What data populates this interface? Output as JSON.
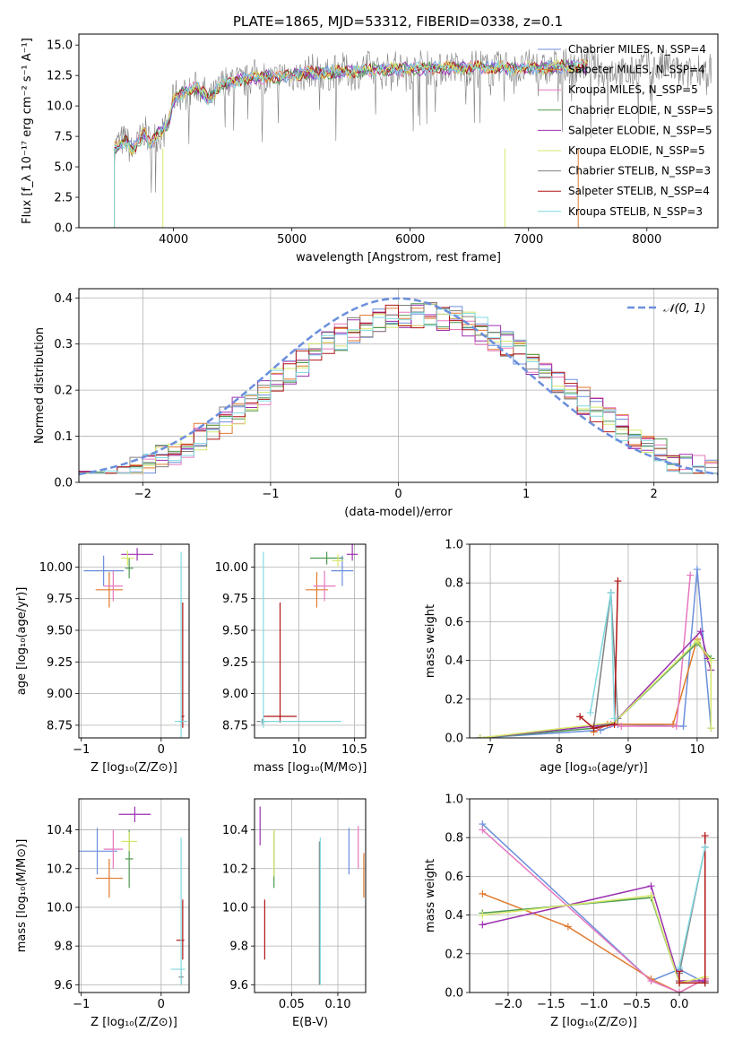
{
  "figure": {
    "title": "PLATE=1865, MJD=53312, FIBERID=0338, z=0.1"
  },
  "colors": {
    "chabrier_miles": "#6b8fdc",
    "salpeter_miles": "#e07a2d",
    "kroupa_miles": "#e678c0",
    "chabrier_elodie": "#4e9a4e",
    "salpeter_elodie": "#9b30b0",
    "kroupa_elodie": "#d6e86a",
    "chabrier_stelib": "#808080",
    "salpeter_stelib": "#b01515",
    "kroupa_stelib": "#80d8e0",
    "gauss": "#6b8fdc",
    "grid": "#b0b0b0"
  },
  "chart_data": [
    {
      "id": "spectrum",
      "type": "line",
      "xlabel": "wavelength [Angstrom, rest frame]",
      "ylabel": "Flux [f_λ 10⁻¹⁷ erg cm⁻² s⁻¹ A⁻¹]",
      "xlim": [
        3200,
        8600
      ],
      "ylim": [
        0,
        15.9
      ],
      "xticks": [
        4000,
        5000,
        6000,
        7000,
        8000
      ],
      "yticks": [
        0.0,
        2.5,
        5.0,
        7.5,
        10.0,
        12.5,
        15.0
      ],
      "grid": false,
      "legend_position": "right",
      "observed": {
        "x": [
          3500,
          3550,
          3600,
          3650,
          3700,
          3750,
          3800,
          3850,
          3900,
          3950,
          4000,
          4100,
          4200,
          4300,
          4400,
          4500,
          4600,
          4700,
          4800,
          4900,
          5000,
          5200,
          5400,
          5600,
          5800,
          6000,
          6200,
          6400,
          6600,
          6800,
          7000,
          7200,
          7400,
          7500
        ],
        "y": [
          6.5,
          6.8,
          7.2,
          6.4,
          7.0,
          7.8,
          6.8,
          7.6,
          8.0,
          8.3,
          10.5,
          11.2,
          11.5,
          10.5,
          11.8,
          12.0,
          12.2,
          12.3,
          12.4,
          12.3,
          12.6,
          12.7,
          12.8,
          12.9,
          13.0,
          13.0,
          13.1,
          13.1,
          13.2,
          13.1,
          13.1,
          13.2,
          13.3,
          13.2
        ]
      },
      "series": [
        {
          "name": "Chabrier MILES, N_SSP=4",
          "key": "chabrier_miles"
        },
        {
          "name": "Salpeter MILES, N_SSP=4",
          "key": "salpeter_miles"
        },
        {
          "name": "Kroupa MILES, N_SSP=5",
          "key": "kroupa_miles"
        },
        {
          "name": "Chabrier ELODIE, N_SSP=5",
          "key": "chabrier_elodie"
        },
        {
          "name": "Salpeter ELODIE, N_SSP=5",
          "key": "salpeter_elodie"
        },
        {
          "name": "Kroupa ELODIE, N_SSP=5",
          "key": "kroupa_elodie"
        },
        {
          "name": "Chabrier STELIB, N_SSP=3",
          "key": "chabrier_stelib"
        },
        {
          "name": "Salpeter STELIB, N_SSP=4",
          "key": "salpeter_stelib"
        },
        {
          "name": "Kroupa STELIB, N_SSP=3",
          "key": "kroupa_stelib"
        }
      ]
    },
    {
      "id": "residuals",
      "type": "histogram",
      "xlabel": "(data-model)/error",
      "ylabel": "Normed distribution",
      "xlim": [
        -2.5,
        2.5
      ],
      "ylim": [
        0,
        0.42
      ],
      "xticks": [
        -2,
        -1,
        0,
        1,
        2
      ],
      "yticks": [
        0.0,
        0.1,
        0.2,
        0.3,
        0.4
      ],
      "grid": true,
      "legend_position": "top-right",
      "gauss_label": "𝒩(0, 1)",
      "bin_width": 0.1
    },
    {
      "id": "age_vs_Z",
      "type": "errorbar",
      "xlabel": "Z [log₁₀(Z/Z⊙)]",
      "ylabel": "age [log₁₀(age/yr)]",
      "xlim": [
        -1.03,
        0.35
      ],
      "ylim": [
        8.65,
        10.18
      ],
      "xticks": [
        -1,
        0
      ],
      "yticks": [
        8.75,
        9.0,
        9.25,
        9.5,
        9.75,
        10.0
      ],
      "ytick_labels": [
        "8.75",
        "9.00",
        "9.25",
        "9.50",
        "9.75",
        "10.00"
      ],
      "grid": true,
      "points": [
        {
          "key": "chabrier_miles",
          "x": -0.72,
          "xerr": [
            0.25,
            0.25
          ],
          "y": 9.97,
          "yerr": [
            0.12,
            0.12
          ]
        },
        {
          "key": "salpeter_miles",
          "x": -0.65,
          "xerr": [
            0.17,
            0.17
          ],
          "y": 9.82,
          "yerr": [
            0.14,
            0.14
          ]
        },
        {
          "key": "kroupa_miles",
          "x": -0.6,
          "xerr": [
            0.12,
            0.12
          ],
          "y": 9.85,
          "yerr": [
            0.12,
            0.12
          ]
        },
        {
          "key": "chabrier_elodie",
          "x": -0.4,
          "xerr": [
            0.05,
            0.05
          ],
          "y": 9.99,
          "yerr": [
            0.08,
            0.08
          ]
        },
        {
          "key": "salpeter_elodie",
          "x": -0.3,
          "xerr": [
            0.2,
            0.2
          ],
          "y": 10.1,
          "yerr": [
            0.05,
            0.05
          ]
        },
        {
          "key": "kroupa_elodie",
          "x": -0.42,
          "xerr": [
            0.08,
            0.08
          ],
          "y": 10.07,
          "yerr": [
            0.06,
            0.06
          ]
        },
        {
          "key": "chabrier_stelib",
          "x": 0.25,
          "xerr": [
            0.02,
            0.02
          ],
          "y": 8.78,
          "yerr": [
            0.02,
            0.02
          ]
        },
        {
          "key": "salpeter_stelib",
          "x": 0.27,
          "xerr": [
            0.02,
            0.02
          ],
          "y": 8.82,
          "yerr": [
            0.09,
            0.9
          ]
        },
        {
          "key": "kroupa_stelib",
          "x": 0.25,
          "xerr": [
            0.08,
            0.08
          ],
          "y": 8.78,
          "yerr": [
            0.15,
            1.34
          ]
        }
      ]
    },
    {
      "id": "age_vs_mass",
      "type": "errorbar",
      "xlabel": "mass [log₁₀(M/M⊙)]",
      "ylabel": "",
      "xlim": [
        9.6,
        10.6
      ],
      "ylim": [
        8.65,
        10.18
      ],
      "xticks": [
        10.0,
        10.5
      ],
      "yticks": [
        8.75,
        9.0,
        9.25,
        9.5,
        9.75,
        10.0
      ],
      "ytick_labels": [
        "8.75",
        "9.00",
        "9.25",
        "9.50",
        "9.75",
        "10.00"
      ],
      "grid": true,
      "points": [
        {
          "key": "chabrier_miles",
          "x": 10.39,
          "xerr": [
            0.1,
            0.1
          ],
          "y": 9.97,
          "yerr": [
            0.12,
            0.12
          ]
        },
        {
          "key": "salpeter_miles",
          "x": 10.16,
          "xerr": [
            0.1,
            0.1
          ],
          "y": 9.82,
          "yerr": [
            0.14,
            0.14
          ]
        },
        {
          "key": "kroupa_miles",
          "x": 10.23,
          "xerr": [
            0.1,
            0.1
          ],
          "y": 9.85,
          "yerr": [
            0.12,
            0.12
          ]
        },
        {
          "key": "chabrier_elodie",
          "x": 10.25,
          "xerr": [
            0.15,
            0.15
          ],
          "y": 10.07,
          "yerr": [
            0.05,
            0.05
          ]
        },
        {
          "key": "salpeter_elodie",
          "x": 10.48,
          "xerr": [
            0.05,
            0.05
          ],
          "y": 10.1,
          "yerr": [
            0.05,
            0.1
          ]
        },
        {
          "key": "kroupa_elodie",
          "x": 10.35,
          "xerr": [
            0.05,
            0.05
          ],
          "y": 10.05,
          "yerr": [
            0.05,
            0.05
          ]
        },
        {
          "key": "chabrier_stelib",
          "x": 9.67,
          "xerr": [
            0.05,
            0.05
          ],
          "y": 8.78,
          "yerr": [
            0.02,
            0.02
          ]
        },
        {
          "key": "salpeter_stelib",
          "x": 9.83,
          "xerr": [
            0.15,
            0.15
          ],
          "y": 8.82,
          "yerr": [
            0.05,
            0.9
          ]
        },
        {
          "key": "kroupa_stelib",
          "x": 9.68,
          "xerr": [
            0.03,
            0.7
          ],
          "y": 8.78,
          "yerr": [
            0.05,
            1.34
          ]
        }
      ]
    },
    {
      "id": "mass_weight_vs_age",
      "type": "line",
      "xlabel": "age [log₁₀(age/yr)]",
      "ylabel": "mass weight",
      "xlim": [
        6.7,
        10.3
      ],
      "ylim": [
        0,
        1.0
      ],
      "xticks": [
        7,
        8,
        9,
        10
      ],
      "yticks": [
        0.0,
        0.2,
        0.4,
        0.6,
        0.8,
        1.0
      ],
      "grid": true,
      "series": [
        {
          "key": "chabrier_miles",
          "x": [
            6.85,
            8.6,
            8.85,
            9.8,
            10.0,
            10.2
          ],
          "y": [
            0.0,
            0.04,
            0.07,
            0.06,
            0.87,
            0.05
          ]
        },
        {
          "key": "salpeter_miles",
          "x": [
            8.5,
            8.7,
            9.65,
            10.0,
            10.15
          ],
          "y": [
            0.03,
            0.07,
            0.07,
            0.51,
            0.41
          ]
        },
        {
          "key": "kroupa_miles",
          "x": [
            8.55,
            8.75,
            8.9,
            9.7,
            9.9
          ],
          "y": [
            0.05,
            0.07,
            0.06,
            0.06,
            0.84
          ]
        },
        {
          "key": "chabrier_elodie",
          "x": [
            6.85,
            8.5,
            8.8,
            10.0,
            10.2
          ],
          "y": [
            0.0,
            0.05,
            0.08,
            0.49,
            0.41
          ]
        },
        {
          "key": "salpeter_elodie",
          "x": [
            6.85,
            8.5,
            8.8,
            10.05,
            10.15,
            10.2
          ],
          "y": [
            0.0,
            0.06,
            0.08,
            0.55,
            0.41,
            0.35
          ]
        },
        {
          "key": "kroupa_elodie",
          "x": [
            6.85,
            8.8,
            10.0,
            10.2,
            10.2
          ],
          "y": [
            0.0,
            0.08,
            0.5,
            0.4,
            0.05
          ]
        },
        {
          "key": "chabrier_stelib",
          "x": [
            8.5,
            8.75,
            8.85
          ],
          "y": [
            0.05,
            0.75,
            0.1
          ]
        },
        {
          "key": "salpeter_stelib",
          "x": [
            8.3,
            8.5,
            8.8,
            8.85
          ],
          "y": [
            0.11,
            0.05,
            0.07,
            0.81
          ]
        },
        {
          "key": "kroupa_stelib",
          "x": [
            8.45,
            8.75,
            8.8
          ],
          "y": [
            0.13,
            0.75,
            0.1
          ]
        }
      ]
    },
    {
      "id": "mass_vs_Z",
      "type": "errorbar",
      "xlabel": "Z [log₁₀(Z/Z⊙)]",
      "ylabel": "mass [log₁₀(M/M⊙)]",
      "xlim": [
        -1.03,
        0.35
      ],
      "ylim": [
        9.56,
        10.56
      ],
      "xticks": [
        -1,
        0
      ],
      "yticks": [
        9.6,
        9.8,
        10.0,
        10.2,
        10.4
      ],
      "grid": true,
      "points": [
        {
          "key": "chabrier_miles",
          "x": -0.8,
          "xerr": [
            0.25,
            0.25
          ],
          "y": 10.29,
          "yerr": [
            0.12,
            0.12
          ]
        },
        {
          "key": "salpeter_miles",
          "x": -0.65,
          "xerr": [
            0.17,
            0.17
          ],
          "y": 10.15,
          "yerr": [
            0.1,
            0.1
          ]
        },
        {
          "key": "kroupa_miles",
          "x": -0.6,
          "xerr": [
            0.12,
            0.12
          ],
          "y": 10.3,
          "yerr": [
            0.1,
            0.1
          ]
        },
        {
          "key": "chabrier_elodie",
          "x": -0.4,
          "xerr": [
            0.05,
            0.05
          ],
          "y": 10.25,
          "yerr": [
            0.15,
            0.15
          ]
        },
        {
          "key": "salpeter_elodie",
          "x": -0.33,
          "xerr": [
            0.2,
            0.2
          ],
          "y": 10.48,
          "yerr": [
            0.04,
            0.04
          ]
        },
        {
          "key": "kroupa_elodie",
          "x": -0.4,
          "xerr": [
            0.1,
            0.1
          ],
          "y": 10.34,
          "yerr": [
            0.05,
            0.05
          ]
        },
        {
          "key": "chabrier_stelib",
          "x": 0.25,
          "xerr": [
            0.03,
            0.03
          ],
          "y": 9.64,
          "yerr": [
            0.04,
            0.04
          ]
        },
        {
          "key": "salpeter_stelib",
          "x": 0.27,
          "xerr": [
            0.08,
            0.02
          ],
          "y": 9.83,
          "yerr": [
            0.1,
            0.21
          ]
        },
        {
          "key": "kroupa_stelib",
          "x": 0.25,
          "xerr": [
            0.13,
            0.05
          ],
          "y": 9.68,
          "yerr": [
            0.08,
            0.68
          ]
        }
      ]
    },
    {
      "id": "mass_vs_ebv",
      "type": "errorbar",
      "xlabel": "E(B-V)",
      "ylabel": "",
      "xlim": [
        0.01,
        0.13
      ],
      "ylim": [
        9.56,
        10.56
      ],
      "xticks": [
        0.05,
        0.1
      ],
      "xtick_labels": [
        "0.05",
        "0.10"
      ],
      "yticks": [
        9.6,
        9.8,
        10.0,
        10.2,
        10.4
      ],
      "grid": true,
      "points": [
        {
          "key": "chabrier_miles",
          "x": 0.112,
          "y": 10.29,
          "yerr": [
            0.12,
            0.12
          ]
        },
        {
          "key": "salpeter_miles",
          "x": 0.128,
          "y": 10.15,
          "yerr": [
            0.1,
            0.13
          ]
        },
        {
          "key": "kroupa_miles",
          "x": 0.122,
          "y": 10.3,
          "yerr": [
            0.1,
            0.12
          ]
        },
        {
          "key": "chabrier_elodie",
          "x": 0.031,
          "y": 10.25,
          "yerr": [
            0.15,
            0.15
          ]
        },
        {
          "key": "salpeter_elodie",
          "x": 0.016,
          "y": 10.42,
          "yerr": [
            0.1,
            0.1
          ]
        },
        {
          "key": "kroupa_elodie",
          "x": 0.031,
          "y": 10.28,
          "yerr": [
            0.12,
            0.12
          ]
        },
        {
          "key": "chabrier_stelib",
          "x": 0.08,
          "y": 9.64,
          "yerr": [
            0.04,
            0.7
          ]
        },
        {
          "key": "salpeter_stelib",
          "x": 0.021,
          "y": 9.88,
          "yerr": [
            0.15,
            0.16
          ]
        },
        {
          "key": "kroupa_stelib",
          "x": 0.081,
          "y": 9.98,
          "yerr": [
            0.38,
            0.38
          ]
        }
      ]
    },
    {
      "id": "mass_weight_vs_Z",
      "type": "line",
      "xlabel": "Z [log₁₀(Z/Z⊙)]",
      "ylabel": "mass weight",
      "xlim": [
        -2.45,
        0.45
      ],
      "ylim": [
        0,
        1.0
      ],
      "xticks": [
        -2.0,
        -1.5,
        -1.0,
        -0.5,
        0.0
      ],
      "xtick_labels": [
        "−2.0",
        "−1.5",
        "−1.0",
        "−0.5",
        "0.0"
      ],
      "yticks": [
        0.0,
        0.2,
        0.4,
        0.6,
        0.8,
        1.0
      ],
      "grid": true,
      "series": [
        {
          "key": "chabrier_miles",
          "x": [
            -2.3,
            -0.33,
            0.0,
            0.3
          ],
          "y": [
            0.87,
            0.06,
            0.12,
            0.05
          ]
        },
        {
          "key": "salpeter_miles",
          "x": [
            -2.3,
            -1.3,
            -0.33,
            0.0,
            0.3
          ],
          "y": [
            0.51,
            0.34,
            0.07,
            0.0,
            0.07
          ]
        },
        {
          "key": "kroupa_miles",
          "x": [
            -2.3,
            -0.33,
            0.0,
            0.3
          ],
          "y": [
            0.84,
            0.06,
            0.0,
            0.07
          ]
        },
        {
          "key": "chabrier_elodie",
          "x": [
            -2.3,
            -0.33,
            0.0,
            0.3
          ],
          "y": [
            0.41,
            0.49,
            0.05,
            0.05
          ]
        },
        {
          "key": "salpeter_elodie",
          "x": [
            -2.3,
            -0.33,
            0.0,
            0.3
          ],
          "y": [
            0.35,
            0.55,
            0.06,
            0.06
          ]
        },
        {
          "key": "kroupa_elodie",
          "x": [
            -2.3,
            -0.33,
            0.0,
            0.3
          ],
          "y": [
            0.4,
            0.5,
            0.05,
            0.08
          ]
        },
        {
          "key": "chabrier_stelib",
          "x": [
            0.0,
            0.3
          ],
          "y": [
            0.1,
            0.75
          ]
        },
        {
          "key": "salpeter_stelib",
          "x": [
            0.0,
            0.0,
            0.3,
            0.3
          ],
          "y": [
            0.11,
            0.05,
            0.05,
            0.81
          ]
        },
        {
          "key": "kroupa_stelib",
          "x": [
            0.0,
            0.3
          ],
          "y": [
            0.13,
            0.75
          ]
        }
      ]
    }
  ]
}
